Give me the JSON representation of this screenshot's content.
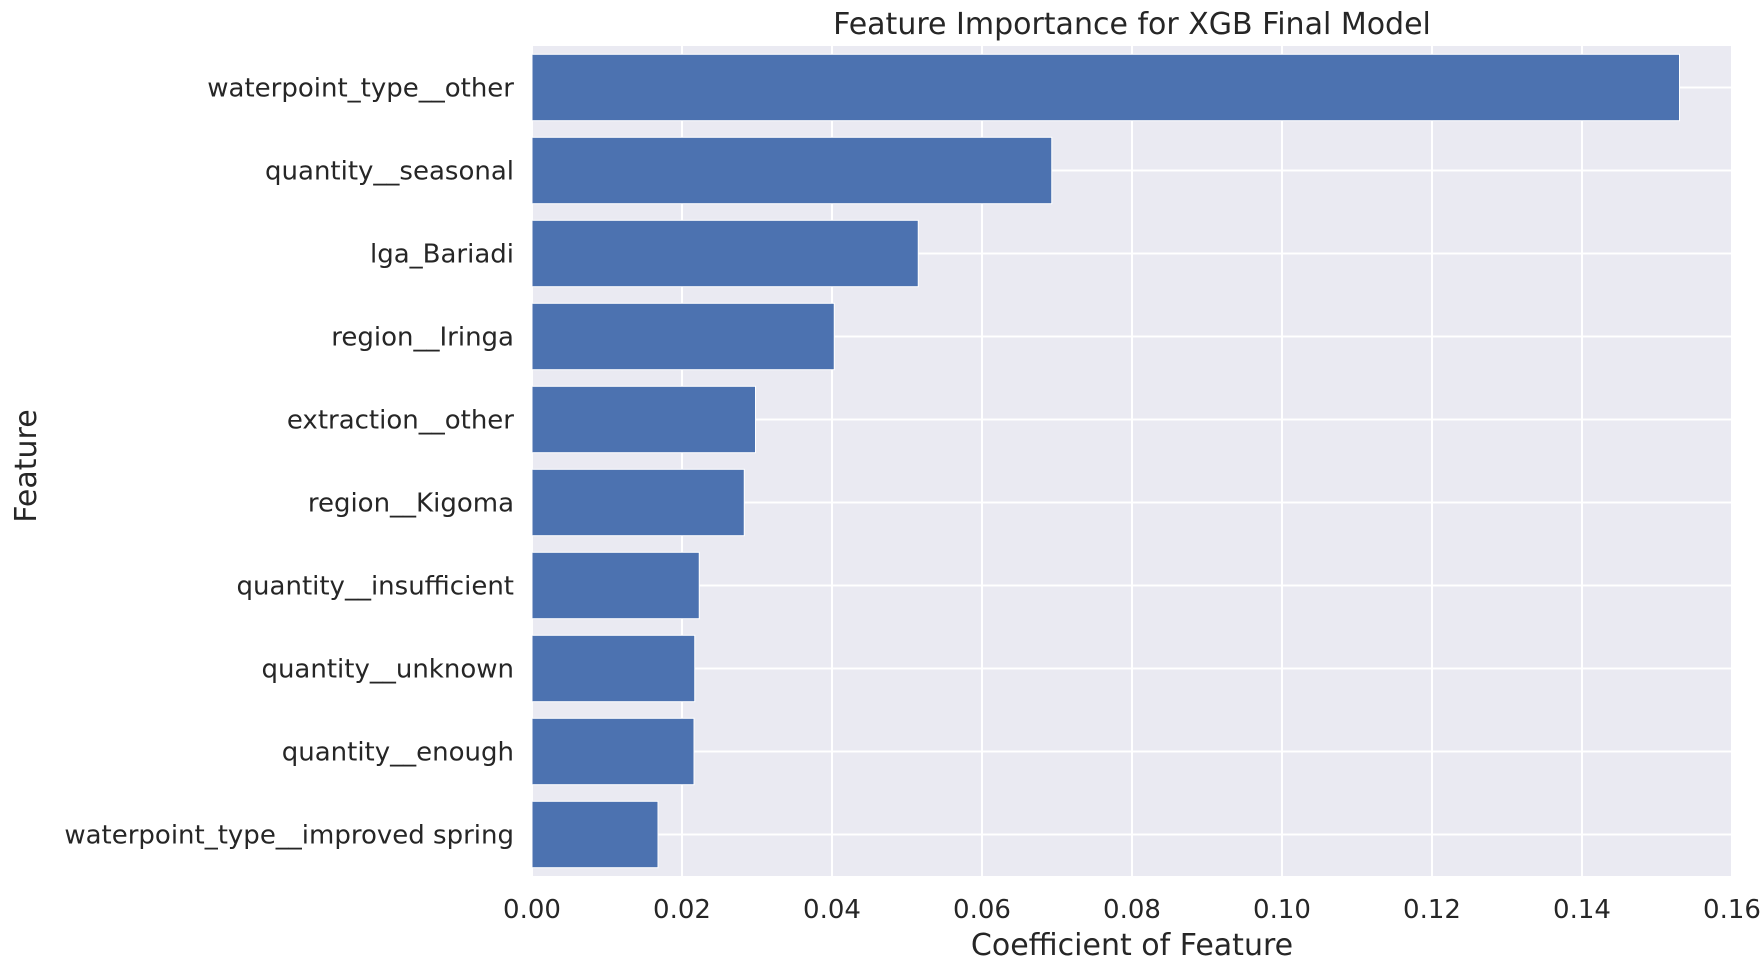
{
  "chart_data": {
    "type": "bar",
    "orientation": "horizontal",
    "title": "Feature Importance for XGB Final Model",
    "xlabel": "Coefficient of Feature",
    "ylabel": "Feature",
    "xlim": [
      0,
      0.16
    ],
    "xticks": [
      "0.00",
      "0.02",
      "0.04",
      "0.06",
      "0.08",
      "0.10",
      "0.12",
      "0.14",
      "0.16"
    ],
    "grid": true,
    "categories": [
      "waterpoint_type__other",
      "quantity__seasonal",
      "lga_Bariadi",
      "region__Iringa",
      "extraction__other",
      "region__Kigoma",
      "quantity__insufficient",
      "quantity__unknown",
      "quantity__enough",
      "waterpoint_type__improved spring"
    ],
    "values": [
      0.153,
      0.0693,
      0.0515,
      0.0403,
      0.0298,
      0.0283,
      0.0223,
      0.0217,
      0.0216,
      0.0168
    ],
    "bar_color": "#4c72b0",
    "background_color": "#eaeaf2",
    "grid_color": "#ffffff"
  }
}
